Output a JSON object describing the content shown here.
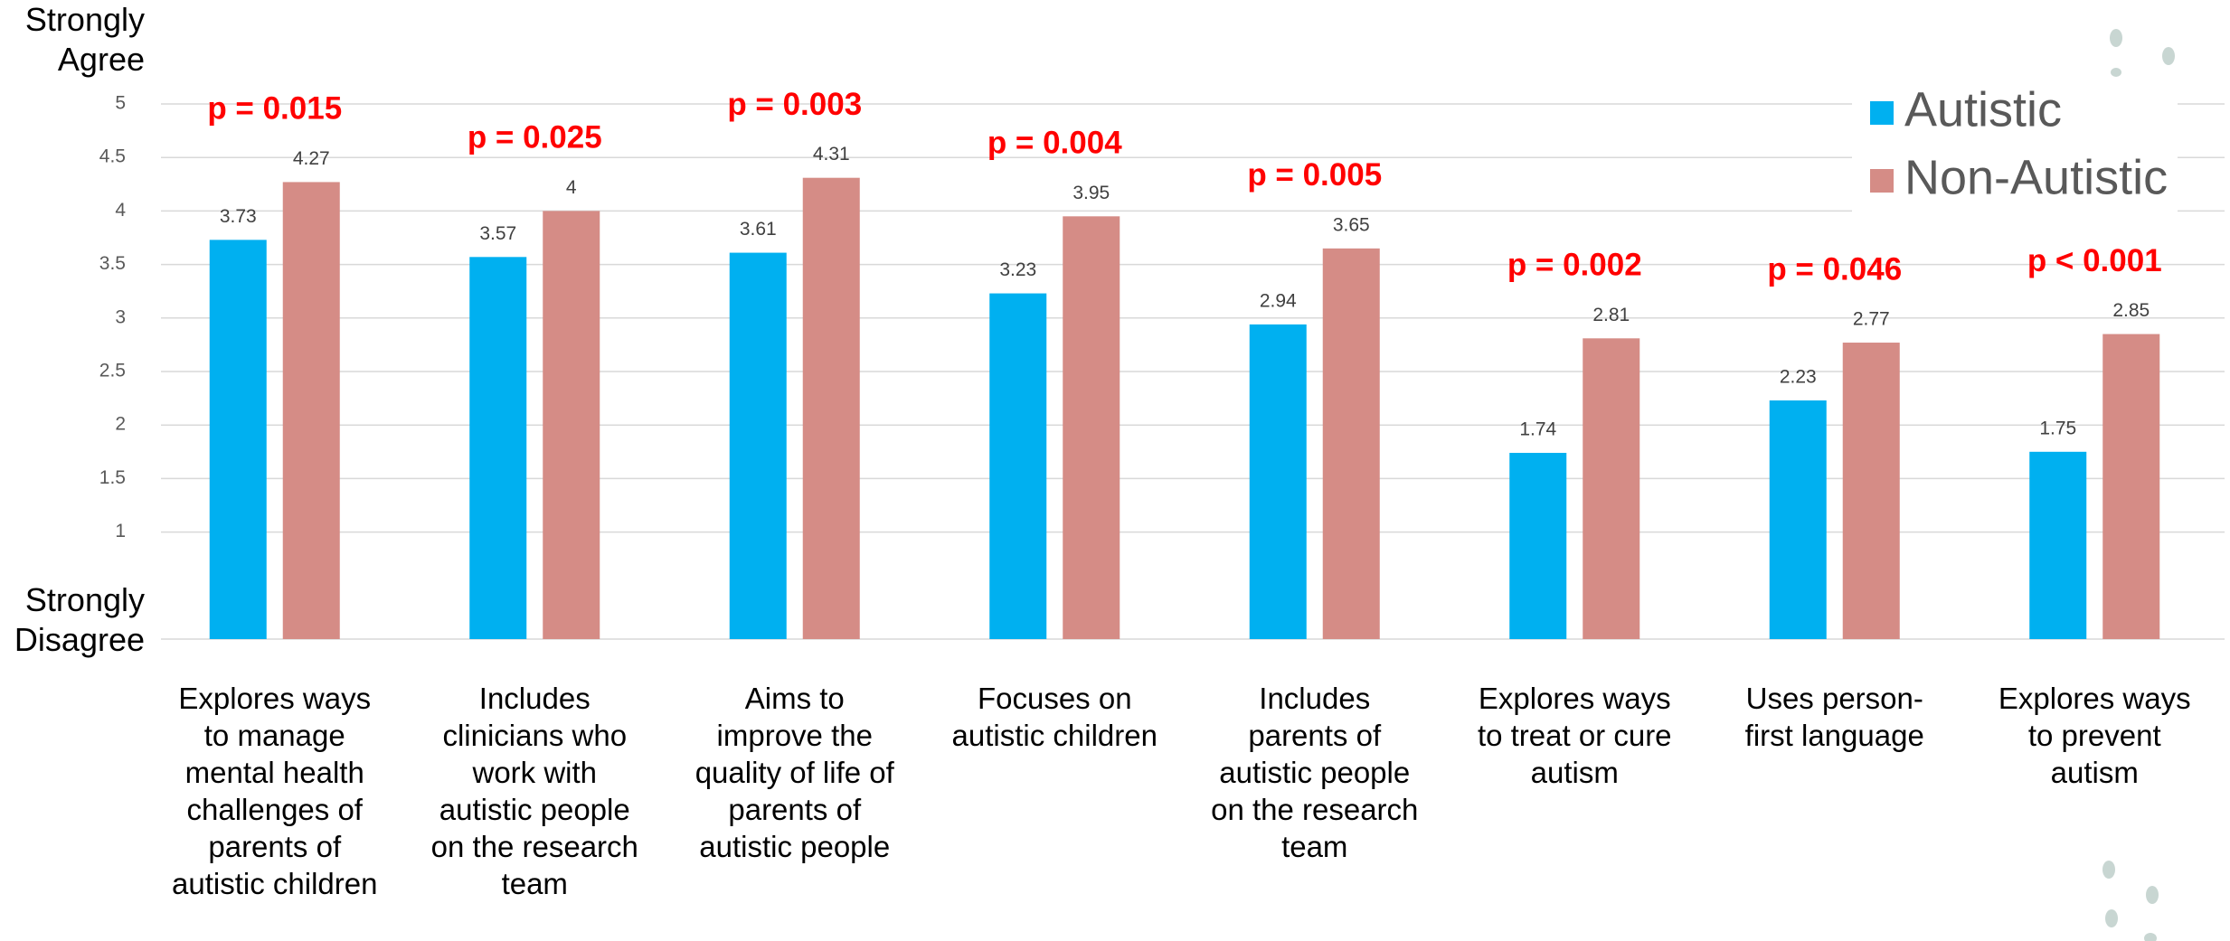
{
  "chart_data": {
    "type": "bar",
    "annotations": {
      "top": "Strongly Agree",
      "bottom": "Strongly Disagree"
    },
    "categories": [
      "Explores ways to manage mental health challenges of parents of autistic children",
      "Includes clinicians who work with autistic people on the research team",
      "Aims to improve the quality of life of parents of autistic people",
      "Focuses on autistic children",
      "Includes parents of autistic people on the research team",
      "Explores ways to treat or cure autism",
      "Uses person-first language",
      "Explores ways to prevent autism"
    ],
    "series": [
      {
        "name": "Autistic",
        "color": "#00b0f0",
        "values": [
          3.73,
          3.57,
          3.61,
          3.23,
          2.94,
          1.74,
          2.23,
          1.75
        ]
      },
      {
        "name": "Non-Autistic",
        "color": "#d58c86",
        "values": [
          4.27,
          4,
          4.31,
          3.95,
          3.65,
          2.81,
          2.77,
          2.85
        ]
      }
    ],
    "p_values": [
      "p = 0.015",
      "p = 0.025",
      "p = 0.003",
      "p = 0.004",
      "p = 0.005",
      "p = 0.002",
      "p = 0.046",
      "p < 0.001"
    ],
    "p_value_color": "#ff0000",
    "ylim": [
      0,
      5
    ],
    "yticks": [
      1,
      1.5,
      2,
      2.5,
      3,
      3.5,
      4,
      4.5,
      5
    ],
    "grid": true,
    "legend": "top-right"
  }
}
